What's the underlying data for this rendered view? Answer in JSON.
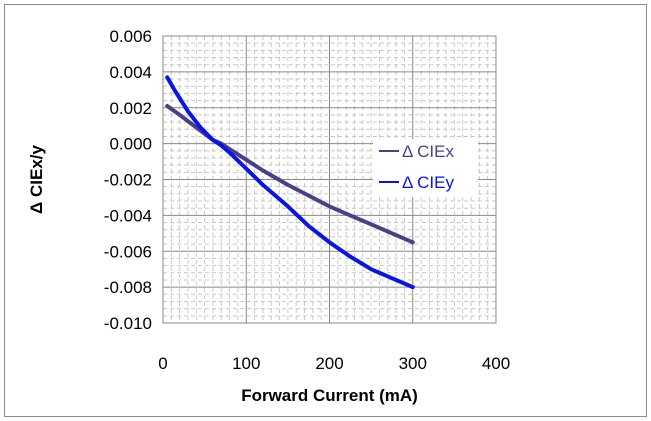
{
  "chart_data": {
    "type": "line",
    "title": "",
    "xlabel": "Forward Current (mA)",
    "ylabel": "Δ CIEx/y",
    "xlim": [
      0,
      400
    ],
    "ylim": [
      -0.01,
      0.006
    ],
    "x_ticks": [
      "0",
      "100",
      "200",
      "300",
      "400"
    ],
    "y_ticks": [
      "0.006",
      "0.004",
      "0.002",
      "0.000",
      "-0.002",
      "-0.004",
      "-0.006",
      "-0.008",
      "-0.010"
    ],
    "grid": true,
    "legend_position": "right",
    "series": [
      {
        "name": "Δ CIEx",
        "color": "#4b3f8a",
        "x": [
          5,
          20,
          40,
          60,
          70,
          80,
          100,
          120,
          150,
          175,
          200,
          225,
          250,
          275,
          300
        ],
        "y": [
          0.0021,
          0.0016,
          0.0009,
          0.0002,
          0.0,
          -0.0003,
          -0.0009,
          -0.0015,
          -0.0023,
          -0.0029,
          -0.0035,
          -0.004,
          -0.0045,
          -0.005,
          -0.0055
        ]
      },
      {
        "name": "Δ CIEy",
        "color": "#0a14e6",
        "x": [
          5,
          15,
          30,
          45,
          60,
          70,
          80,
          100,
          120,
          150,
          175,
          200,
          225,
          250,
          275,
          300
        ],
        "y": [
          0.0037,
          0.0029,
          0.0018,
          0.0009,
          0.0002,
          -0.0001,
          -0.0005,
          -0.0014,
          -0.0023,
          -0.0035,
          -0.0046,
          -0.0055,
          -0.0063,
          -0.007,
          -0.0075,
          -0.008
        ]
      }
    ]
  }
}
